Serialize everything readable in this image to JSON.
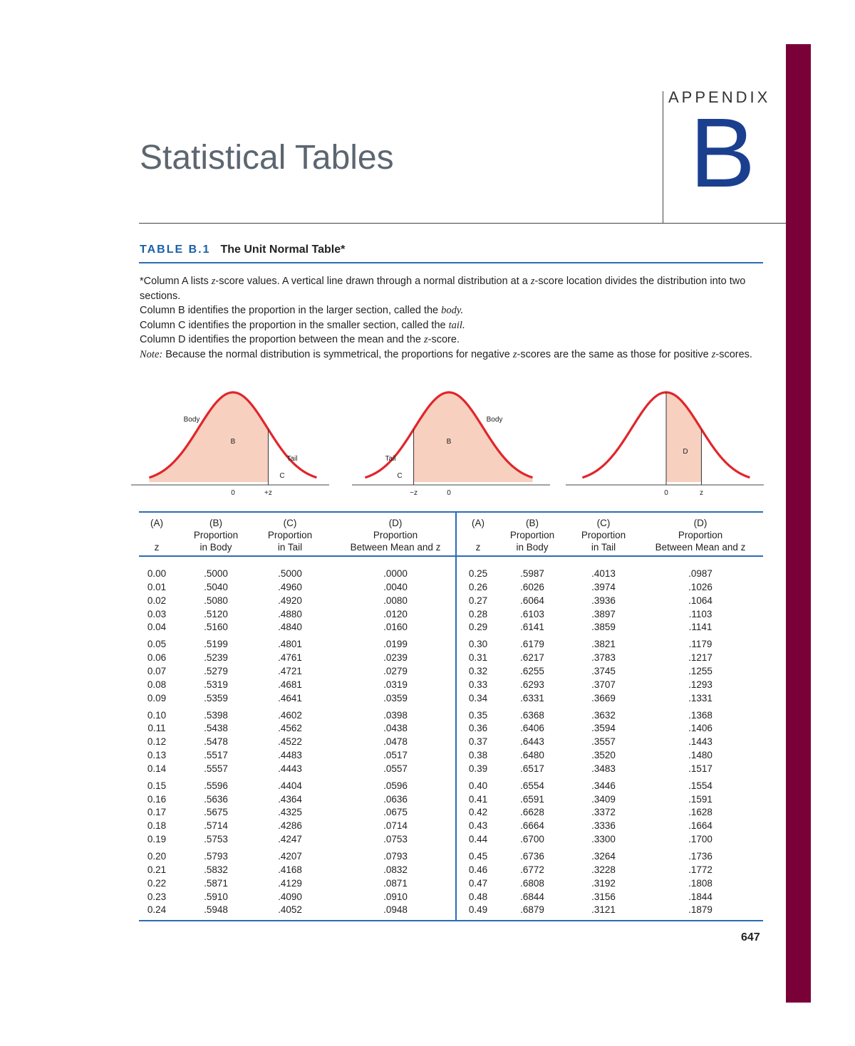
{
  "header": {
    "appendix_label": "APPENDIX",
    "appendix_letter": "B",
    "title": "Statistical Tables"
  },
  "caption": {
    "label": "TABLE B.1",
    "title": "The Unit Normal Table*"
  },
  "notes": {
    "line1a": "*Column A lists ",
    "line1b": "z",
    "line1c": "-score values. A vertical line drawn through a normal distribution at a ",
    "line1d": "z",
    "line1e": "-score location divides the distribution into two sections.",
    "line2a": "Column B identifies the proportion in the larger section, called the ",
    "line2b": "body.",
    "line3a": "Column C identifies the proportion in the smaller section, called the ",
    "line3b": "tail.",
    "line4a": "Column D identifies the proportion between the mean and the ",
    "line4b": "z",
    "line4c": "-score.",
    "line5a": "Note:",
    "line5b": "  Because the normal distribution is symmetrical, the proportions for negative ",
    "line5c": "z",
    "line5d": "-scores are the same as those for positive ",
    "line5e": "z",
    "line5f": "-scores."
  },
  "figures": [
    {
      "labels": {
        "body": "Body",
        "tail": "Tail",
        "region1": "B",
        "region2": "C",
        "tick0": "0",
        "tickz": "+z"
      }
    },
    {
      "labels": {
        "body": "Body",
        "tail": "Tail",
        "region1": "B",
        "region2": "C",
        "tick0": "0",
        "tickz": "−z"
      }
    },
    {
      "labels": {
        "region1": "D",
        "tick0": "0",
        "tickz": "z"
      }
    }
  ],
  "colors": {
    "curve": "#e0262b",
    "fill": "#f7d0bf",
    "accent": "#2a6cb5",
    "bar": "#7a0038"
  },
  "table": {
    "headers": [
      [
        "(A)",
        "",
        "z"
      ],
      [
        "(B)",
        "Proportion",
        "in Body"
      ],
      [
        "(C)",
        "Proportion",
        "in Tail"
      ],
      [
        "(D)",
        "Proportion",
        "Between Mean and z"
      ]
    ],
    "left_rows": [
      [
        "0.00",
        ".5000",
        ".5000",
        ".0000"
      ],
      [
        "0.01",
        ".5040",
        ".4960",
        ".0040"
      ],
      [
        "0.02",
        ".5080",
        ".4920",
        ".0080"
      ],
      [
        "0.03",
        ".5120",
        ".4880",
        ".0120"
      ],
      [
        "0.04",
        ".5160",
        ".4840",
        ".0160"
      ],
      [
        "0.05",
        ".5199",
        ".4801",
        ".0199"
      ],
      [
        "0.06",
        ".5239",
        ".4761",
        ".0239"
      ],
      [
        "0.07",
        ".5279",
        ".4721",
        ".0279"
      ],
      [
        "0.08",
        ".5319",
        ".4681",
        ".0319"
      ],
      [
        "0.09",
        ".5359",
        ".4641",
        ".0359"
      ],
      [
        "0.10",
        ".5398",
        ".4602",
        ".0398"
      ],
      [
        "0.11",
        ".5438",
        ".4562",
        ".0438"
      ],
      [
        "0.12",
        ".5478",
        ".4522",
        ".0478"
      ],
      [
        "0.13",
        ".5517",
        ".4483",
        ".0517"
      ],
      [
        "0.14",
        ".5557",
        ".4443",
        ".0557"
      ],
      [
        "0.15",
        ".5596",
        ".4404",
        ".0596"
      ],
      [
        "0.16",
        ".5636",
        ".4364",
        ".0636"
      ],
      [
        "0.17",
        ".5675",
        ".4325",
        ".0675"
      ],
      [
        "0.18",
        ".5714",
        ".4286",
        ".0714"
      ],
      [
        "0.19",
        ".5753",
        ".4247",
        ".0753"
      ],
      [
        "0.20",
        ".5793",
        ".4207",
        ".0793"
      ],
      [
        "0.21",
        ".5832",
        ".4168",
        ".0832"
      ],
      [
        "0.22",
        ".5871",
        ".4129",
        ".0871"
      ],
      [
        "0.23",
        ".5910",
        ".4090",
        ".0910"
      ],
      [
        "0.24",
        ".5948",
        ".4052",
        ".0948"
      ]
    ],
    "right_rows": [
      [
        "0.25",
        ".5987",
        ".4013",
        ".0987"
      ],
      [
        "0.26",
        ".6026",
        ".3974",
        ".1026"
      ],
      [
        "0.27",
        ".6064",
        ".3936",
        ".1064"
      ],
      [
        "0.28",
        ".6103",
        ".3897",
        ".1103"
      ],
      [
        "0.29",
        ".6141",
        ".3859",
        ".1141"
      ],
      [
        "0.30",
        ".6179",
        ".3821",
        ".1179"
      ],
      [
        "0.31",
        ".6217",
        ".3783",
        ".1217"
      ],
      [
        "0.32",
        ".6255",
        ".3745",
        ".1255"
      ],
      [
        "0.33",
        ".6293",
        ".3707",
        ".1293"
      ],
      [
        "0.34",
        ".6331",
        ".3669",
        ".1331"
      ],
      [
        "0.35",
        ".6368",
        ".3632",
        ".1368"
      ],
      [
        "0.36",
        ".6406",
        ".3594",
        ".1406"
      ],
      [
        "0.37",
        ".6443",
        ".3557",
        ".1443"
      ],
      [
        "0.38",
        ".6480",
        ".3520",
        ".1480"
      ],
      [
        "0.39",
        ".6517",
        ".3483",
        ".1517"
      ],
      [
        "0.40",
        ".6554",
        ".3446",
        ".1554"
      ],
      [
        "0.41",
        ".6591",
        ".3409",
        ".1591"
      ],
      [
        "0.42",
        ".6628",
        ".3372",
        ".1628"
      ],
      [
        "0.43",
        ".6664",
        ".3336",
        ".1664"
      ],
      [
        "0.44",
        ".6700",
        ".3300",
        ".1700"
      ],
      [
        "0.45",
        ".6736",
        ".3264",
        ".1736"
      ],
      [
        "0.46",
        ".6772",
        ".3228",
        ".1772"
      ],
      [
        "0.47",
        ".6808",
        ".3192",
        ".1808"
      ],
      [
        "0.48",
        ".6844",
        ".3156",
        ".1844"
      ],
      [
        "0.49",
        ".6879",
        ".3121",
        ".1879"
      ]
    ]
  },
  "page_number": "647"
}
